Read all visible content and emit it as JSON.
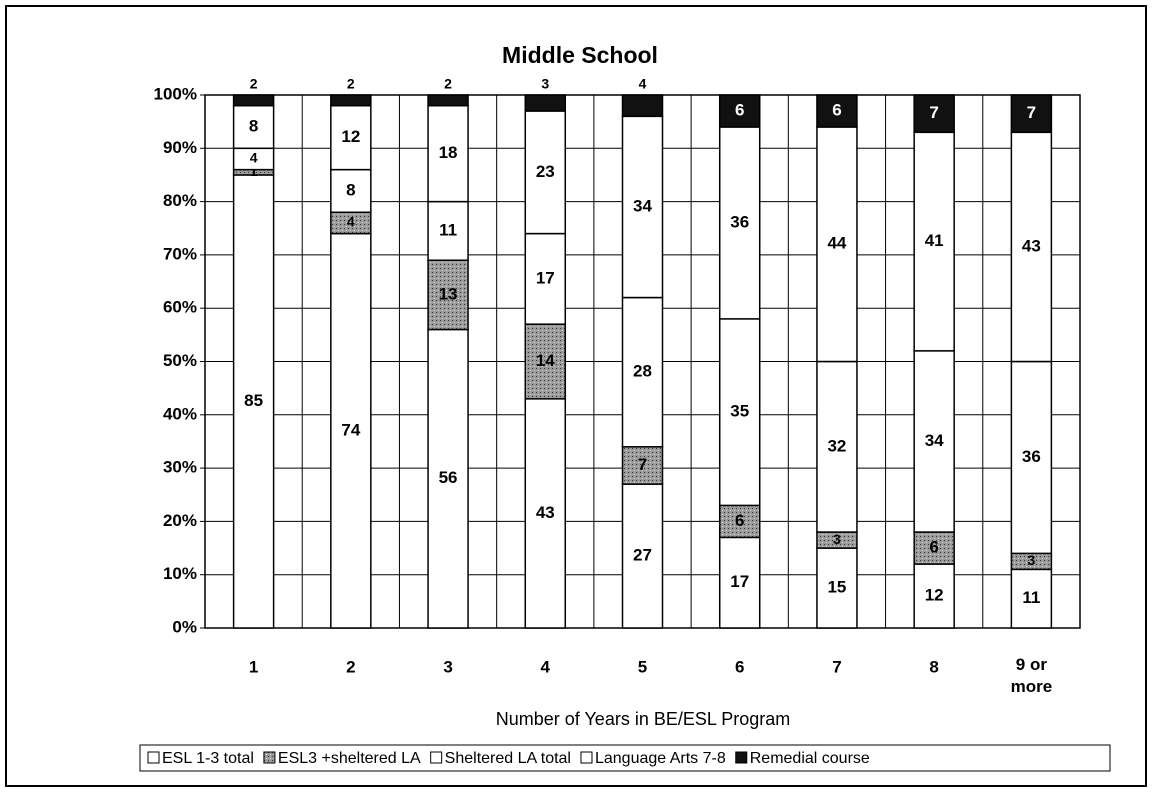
{
  "chart_data": {
    "type": "stacked_bar_100",
    "title": "Middle School",
    "x_label": "Number of Years in BE/ESL Program",
    "categories": [
      "1",
      "2",
      "3",
      "4",
      "5",
      "6",
      "7",
      "8",
      "9 or more"
    ],
    "series": [
      {
        "name": "ESL 1-3 total",
        "color": "#ffffff",
        "values": [
          85,
          74,
          56,
          43,
          27,
          17,
          15,
          12,
          11
        ]
      },
      {
        "name": "ESL3 +sheltered LA",
        "color": "#8a8a8a",
        "values": [
          1,
          4,
          13,
          14,
          7,
          6,
          3,
          6,
          3
        ]
      },
      {
        "name": "Sheltered LA total",
        "color": "#ffffff",
        "values": [
          4,
          8,
          11,
          17,
          28,
          35,
          32,
          34,
          36
        ]
      },
      {
        "name": "Language Arts 7-8",
        "color": "#ffffff",
        "values": [
          8,
          12,
          18,
          23,
          34,
          36,
          44,
          41,
          43
        ]
      },
      {
        "name": "Remedial course",
        "color": "#111111",
        "values": [
          2,
          2,
          2,
          3,
          4,
          6,
          6,
          7,
          7
        ]
      }
    ],
    "ylim": [
      0,
      100
    ],
    "yticks": [
      {
        "value": 0,
        "label": "0%"
      },
      {
        "value": 10,
        "label": "10%"
      },
      {
        "value": 20,
        "label": "20%"
      },
      {
        "value": 30,
        "label": "30%"
      },
      {
        "value": 40,
        "label": "40%"
      },
      {
        "value": 50,
        "label": "50%"
      },
      {
        "value": 60,
        "label": "60%"
      },
      {
        "value": 70,
        "label": "70%"
      },
      {
        "value": 80,
        "label": "80%"
      },
      {
        "value": 90,
        "label": "90%"
      },
      {
        "value": 100,
        "label": "100%"
      }
    ],
    "grid": true
  }
}
